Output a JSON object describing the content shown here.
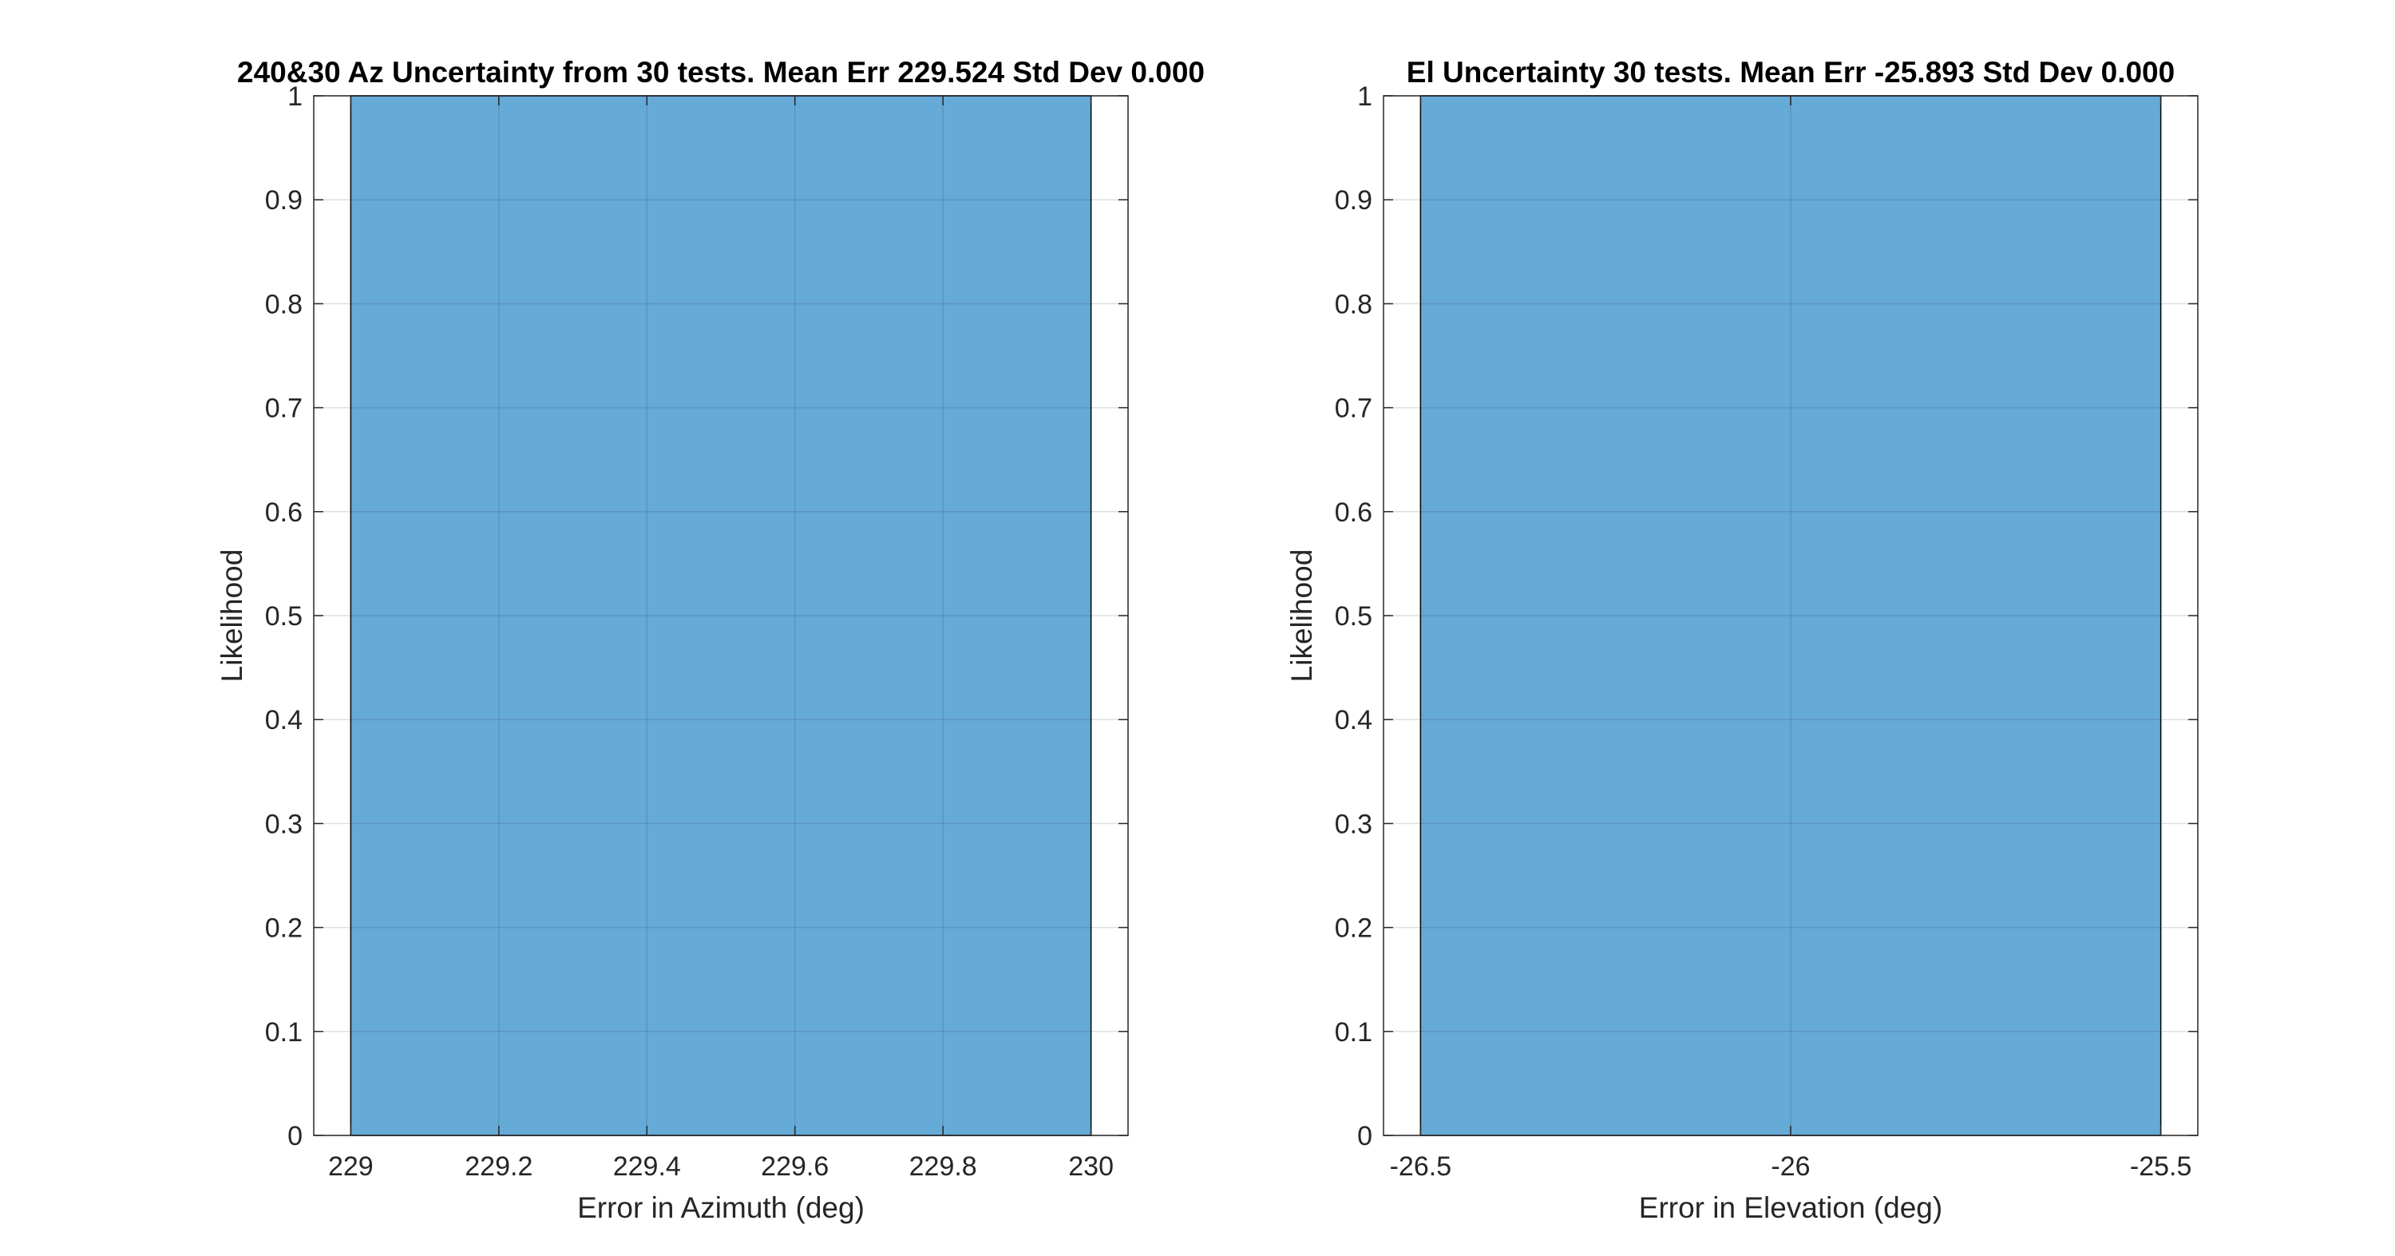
{
  "chart_data": [
    {
      "type": "bar",
      "title": "240&30 Az Uncertainty from 30 tests. Mean Err 229.524 Std Dev 0.000",
      "xlabel": "Error in Azimuth (deg)",
      "ylabel": "Likelihood",
      "xlim": [
        228.95,
        230.05
      ],
      "ylim": [
        0,
        1
      ],
      "xticks": [
        229,
        229.2,
        229.4,
        229.6,
        229.8,
        230
      ],
      "xtick_labels": [
        "229",
        "229.2",
        "229.4",
        "229.6",
        "229.8",
        "230"
      ],
      "yticks": [
        0,
        0.1,
        0.2,
        0.3,
        0.4,
        0.5,
        0.6,
        0.7,
        0.8,
        0.9,
        1
      ],
      "ytick_labels": [
        "0",
        "0.1",
        "0.2",
        "0.3",
        "0.4",
        "0.5",
        "0.6",
        "0.7",
        "0.8",
        "0.9",
        "1"
      ],
      "bins": [
        {
          "x0": 229,
          "x1": 230,
          "value": 1
        }
      ],
      "grid": true,
      "color": "#0072BD"
    },
    {
      "type": "bar",
      "title": "El Uncertainty 30 tests. Mean Err -25.893 Std Dev 0.000",
      "xlabel": "Error in Elevation (deg)",
      "ylabel": "Likelihood",
      "xlim": [
        -26.55,
        -25.45
      ],
      "ylim": [
        0,
        1
      ],
      "xticks": [
        -26.5,
        -26,
        -25.5
      ],
      "xtick_labels": [
        "-26.5",
        "-26",
        "-25.5"
      ],
      "yticks": [
        0,
        0.1,
        0.2,
        0.3,
        0.4,
        0.5,
        0.6,
        0.7,
        0.8,
        0.9,
        1
      ],
      "ytick_labels": [
        "0",
        "0.1",
        "0.2",
        "0.3",
        "0.4",
        "0.5",
        "0.6",
        "0.7",
        "0.8",
        "0.9",
        "1"
      ],
      "bins": [
        {
          "x0": -26.5,
          "x1": -25.5,
          "value": 1
        }
      ],
      "grid": true,
      "color": "#0072BD"
    }
  ]
}
